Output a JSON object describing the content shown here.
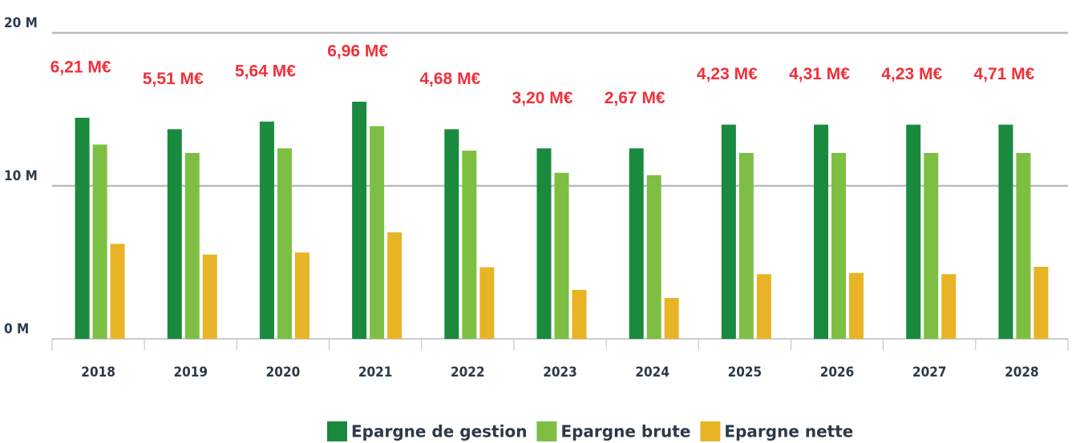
{
  "chart_data": {
    "type": "bar",
    "categories": [
      "2018",
      "2019",
      "2020",
      "2021",
      "2022",
      "2023",
      "2024",
      "2025",
      "2026",
      "2027",
      "2028"
    ],
    "series": [
      {
        "name": "Epargne de gestion",
        "color": "#1a8a3e",
        "values": [
          14.45,
          13.7,
          14.2,
          15.5,
          13.7,
          12.45,
          12.45,
          14.0,
          14.0,
          14.0,
          14.0
        ]
      },
      {
        "name": "Epargne brute",
        "color": "#7dbf43",
        "values": [
          12.7,
          12.15,
          12.45,
          13.9,
          12.3,
          10.85,
          10.7,
          12.15,
          12.15,
          12.15,
          12.15
        ]
      },
      {
        "name": "Epargne nette",
        "color": "#e8b325",
        "values": [
          6.21,
          5.51,
          5.64,
          6.96,
          4.68,
          3.2,
          2.67,
          4.23,
          4.31,
          4.23,
          4.71
        ],
        "value_labels": [
          "6,21 M€",
          "5,51 M€",
          "5,64 M€",
          "6,96 M€",
          "4,68 M€",
          "3,20 M€",
          "2,67 M€",
          "4,23 M€",
          "4,31 M€",
          "4,23 M€",
          "4,71 M€"
        ]
      }
    ],
    "ylim": [
      0,
      20
    ],
    "yticks": [
      {
        "value": 0,
        "label": "0 M"
      },
      {
        "value": 10,
        "label": "10 M"
      },
      {
        "value": 20,
        "label": "20 M"
      }
    ],
    "grid": true
  }
}
